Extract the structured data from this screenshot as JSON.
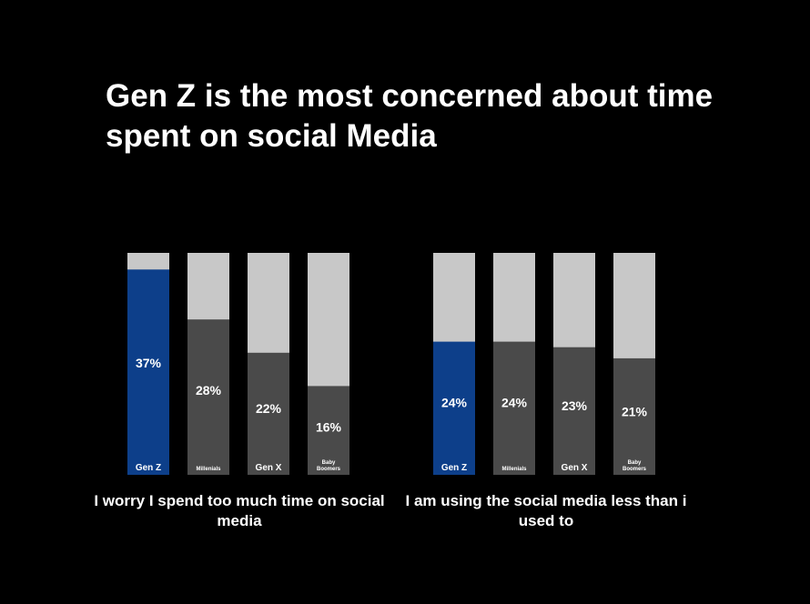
{
  "title": "Gen Z is the most concerned about time spent on social Media",
  "colors": {
    "background": "#000000",
    "remainder": "#c8c8c8",
    "value": "#4a4a4a",
    "highlight": "#0d3f8a",
    "text": "#ffffff"
  },
  "chart_data": [
    {
      "type": "bar",
      "caption": "I worry I spend too much time on social media",
      "categories": [
        "Gen Z",
        "Millenials",
        "Gen X",
        "Baby Boomers"
      ],
      "values": [
        37,
        28,
        22,
        16
      ],
      "value_labels": [
        "37%",
        "28%",
        "22%",
        "16%"
      ],
      "ylim": [
        0,
        40
      ],
      "highlight_index": 0,
      "grid": false
    },
    {
      "type": "bar",
      "caption": "I am using the social media less than i used to",
      "categories": [
        "Gen Z",
        "Millenials",
        "Gen X",
        "Baby Boomers"
      ],
      "values": [
        24,
        24,
        23,
        21
      ],
      "value_labels": [
        "24%",
        "24%",
        "23%",
        "21%"
      ],
      "ylim": [
        0,
        40
      ],
      "highlight_index": 0,
      "grid": false
    }
  ]
}
